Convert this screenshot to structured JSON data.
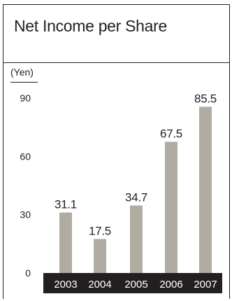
{
  "colors": {
    "bar": "#b0aca2",
    "axis_band": "#231f20",
    "text": "#231f20",
    "band_text": "#ffffff"
  },
  "chart_data": {
    "type": "bar",
    "title": "Net Income per Share",
    "unit_label": "(Yen)",
    "categories": [
      "2003",
      "2004",
      "2005",
      "2006",
      "2007"
    ],
    "values": [
      31.1,
      17.5,
      34.7,
      67.5,
      85.5
    ],
    "value_labels": [
      "31.1",
      "17.5",
      "34.7",
      "67.5",
      "85.5"
    ],
    "yticks": [
      0,
      30,
      60,
      90
    ],
    "ylim": [
      0,
      90
    ],
    "grid": false,
    "legend": "none"
  }
}
